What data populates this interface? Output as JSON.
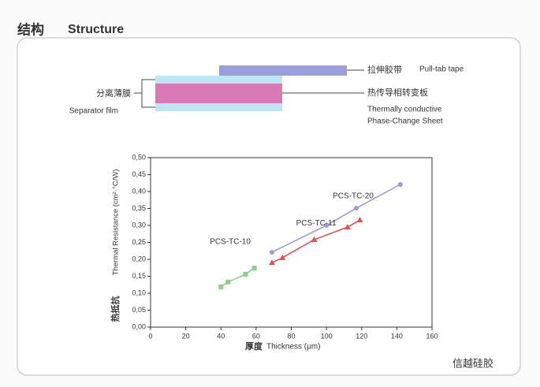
{
  "header": {
    "title_cn": "结构",
    "title_en": "Structure"
  },
  "diagram": {
    "pull_tab_cn": "拉伸胶带",
    "pull_tab_en": "Pull-tab tape",
    "sheet_cn": "热传导相转变板",
    "sheet_en_1": "Thermally conductive",
    "sheet_en_2": "Phase-Change Sheet",
    "separator_cn": "分离薄膜",
    "separator_en": "Separator film"
  },
  "chart_data": {
    "type": "line",
    "y_label": "Thermal Resistance (cm²·°C/W)",
    "y_label_cn": "热抵抗",
    "x_label_cn": "厚度",
    "x_label": "Thickness (μm)",
    "xlim": [
      0,
      160
    ],
    "xticks": [
      0,
      20,
      40,
      60,
      80,
      100,
      120,
      140,
      160
    ],
    "ylim": [
      0,
      0.5
    ],
    "yticks": [
      {
        "value": 0,
        "label": "0,00"
      },
      {
        "value": 0.05,
        "label": "0,05"
      },
      {
        "value": 0.1,
        "label": "0,10"
      },
      {
        "value": 0.15,
        "label": "0,15"
      },
      {
        "value": 0.2,
        "label": "0,20"
      },
      {
        "value": 0.25,
        "label": "0,25"
      },
      {
        "value": 0.3,
        "label": "0,30"
      },
      {
        "value": 0.35,
        "label": "0,35"
      },
      {
        "value": 0.4,
        "label": "0,40"
      },
      {
        "value": 0.45,
        "label": "0,45"
      },
      {
        "value": 0.5,
        "label": "0,50"
      }
    ],
    "series": [
      {
        "name": "PCS-TC-10",
        "color": "#8ccf86",
        "marker": "square",
        "x": [
          40,
          44,
          54,
          59
        ],
        "values": [
          0.119,
          0.133,
          0.156,
          0.174
        ]
      },
      {
        "name": "PCS-TC-20",
        "color": "#9a9ce0",
        "marker": "circle",
        "x": [
          69,
          100,
          117,
          142
        ],
        "values": [
          0.221,
          0.3,
          0.351,
          0.421
        ]
      },
      {
        "name": "PCS-TC-11",
        "color": "#e05252",
        "marker": "triangle",
        "x": [
          69,
          75,
          93,
          112,
          119
        ],
        "values": [
          0.19,
          0.205,
          0.258,
          0.295,
          0.316
        ]
      }
    ]
  },
  "watermark": "信越硅胶"
}
